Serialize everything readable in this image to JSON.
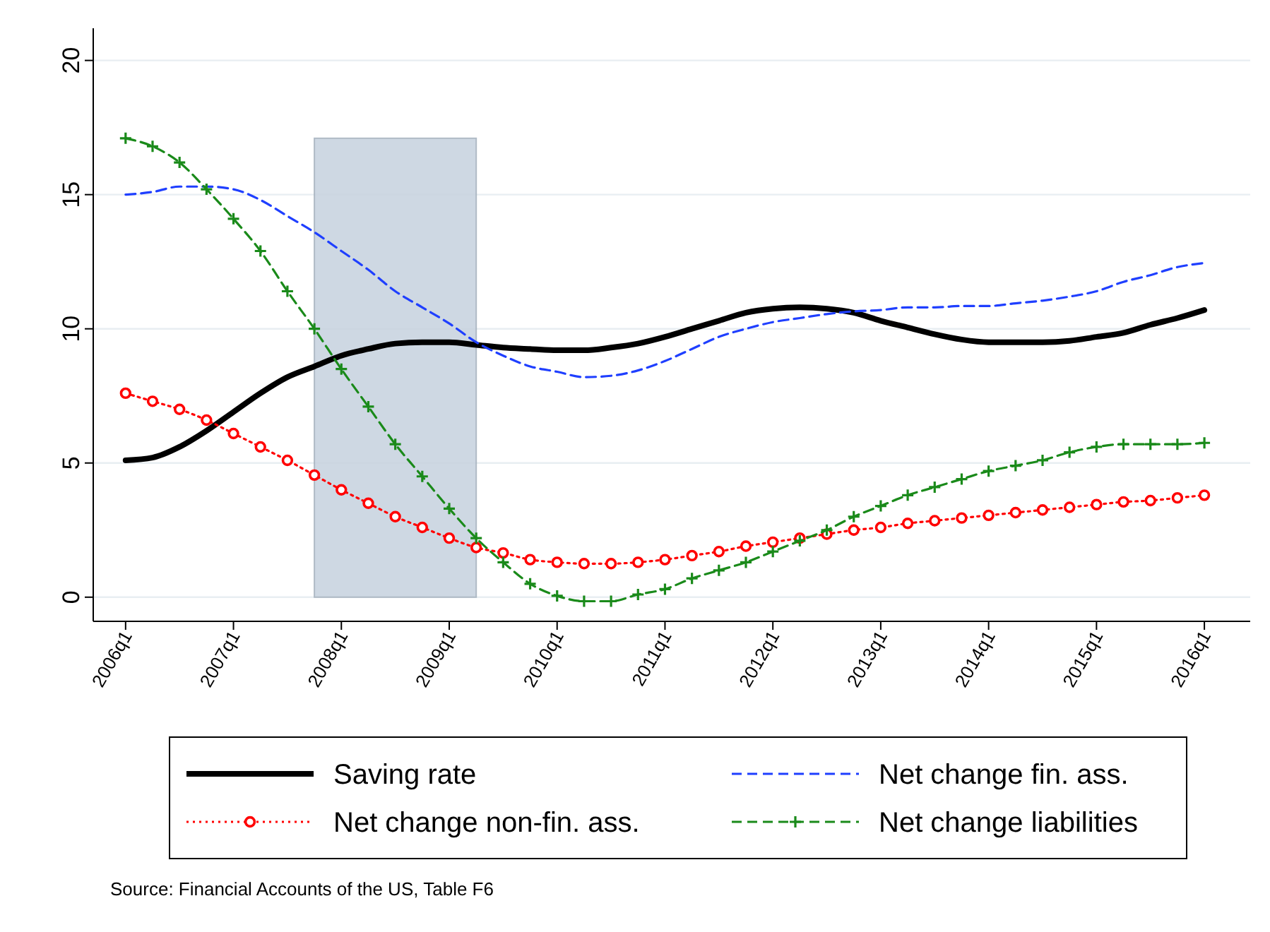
{
  "chart_data": {
    "type": "line",
    "categories": [
      "2006q1",
      null,
      null,
      null,
      "2007q1",
      null,
      null,
      null,
      "2008q1",
      null,
      null,
      null,
      "2009q1",
      null,
      null,
      null,
      "2010q1",
      null,
      null,
      null,
      "2011q1",
      null,
      null,
      null,
      "2012q1",
      null,
      null,
      null,
      "2013q1",
      null,
      null,
      null,
      "2014q1",
      null,
      null,
      null,
      "2015q1",
      null,
      null,
      null,
      "2016q1"
    ],
    "series": [
      {
        "name": "Saving rate",
        "color": "#000000",
        "line_style": "solid",
        "marker": "none",
        "values": [
          5.1,
          5.2,
          5.6,
          6.2,
          6.9,
          7.6,
          8.2,
          8.6,
          9.0,
          9.25,
          9.45,
          9.5,
          9.5,
          9.4,
          9.3,
          9.25,
          9.2,
          9.2,
          9.3,
          9.45,
          9.7,
          10.0,
          10.3,
          10.6,
          10.75,
          10.8,
          10.75,
          10.6,
          10.3,
          10.05,
          9.8,
          9.6,
          9.5,
          9.5,
          9.5,
          9.55,
          9.7,
          9.85,
          10.15,
          10.4,
          10.7
        ]
      },
      {
        "name": "Net change fin. ass.",
        "color": "#1f3fff",
        "line_style": "dashed",
        "marker": "none",
        "values": [
          15.0,
          15.1,
          15.3,
          15.3,
          15.2,
          14.8,
          14.2,
          13.6,
          12.9,
          12.2,
          11.4,
          10.8,
          10.2,
          9.5,
          9.0,
          8.6,
          8.4,
          8.2,
          8.25,
          8.45,
          8.8,
          9.25,
          9.7,
          10.0,
          10.25,
          10.4,
          10.55,
          10.65,
          10.7,
          10.8,
          10.8,
          10.85,
          10.85,
          10.95,
          11.05,
          11.2,
          11.4,
          11.75,
          12.0,
          12.3,
          12.45
        ]
      },
      {
        "name": "Net change non-fin. ass.",
        "color": "#ff0000",
        "line_style": "dotted",
        "marker": "circle",
        "values": [
          7.6,
          7.3,
          7.0,
          6.6,
          6.1,
          5.6,
          5.1,
          4.55,
          4.0,
          3.5,
          3.0,
          2.6,
          2.2,
          1.85,
          1.65,
          1.4,
          1.3,
          1.25,
          1.25,
          1.3,
          1.4,
          1.55,
          1.7,
          1.9,
          2.05,
          2.2,
          2.35,
          2.5,
          2.6,
          2.75,
          2.85,
          2.95,
          3.05,
          3.15,
          3.25,
          3.35,
          3.45,
          3.55,
          3.6,
          3.7,
          3.8
        ]
      },
      {
        "name": "Net change liabilities",
        "color": "#1a8a1a",
        "line_style": "dashed",
        "marker": "cross",
        "values": [
          17.1,
          16.8,
          16.2,
          15.2,
          14.1,
          12.9,
          11.4,
          10.0,
          8.5,
          7.1,
          5.7,
          4.5,
          3.3,
          2.2,
          1.3,
          0.5,
          0.05,
          -0.15,
          -0.15,
          0.1,
          0.3,
          0.7,
          1.0,
          1.3,
          1.7,
          2.1,
          2.5,
          3.0,
          3.4,
          3.8,
          4.1,
          4.4,
          4.7,
          4.9,
          5.1,
          5.4,
          5.6,
          5.7,
          5.7,
          5.7,
          5.75
        ]
      }
    ],
    "ylim": [
      -0.9,
      21.2
    ],
    "yticks": [
      0,
      5,
      10,
      15,
      20
    ],
    "grid": "y",
    "legend": "bottom",
    "annotations": [
      "Source: Financial Accounts of the US, Table F6"
    ]
  }
}
